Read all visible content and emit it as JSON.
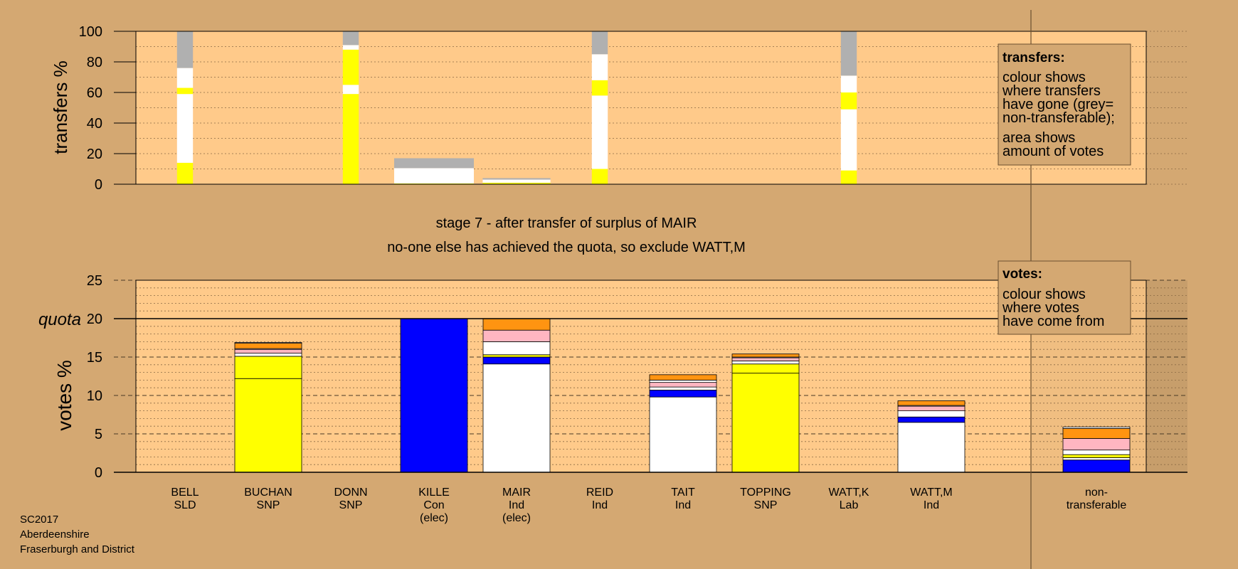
{
  "colors": {
    "background": "#d4a872",
    "plot_bg": "#ffca8a",
    "grey": "#b0b0b0",
    "yellow": "#ffff00",
    "white": "#ffffff",
    "blue": "#0000ff",
    "pink": "#ffb6c1",
    "orange": "#ff9411"
  },
  "stage_title": "stage 7 - after transfer of surplus of MAIR",
  "stage_subtitle": "no-one else has achieved the quota, so exclude WATT,M",
  "footer": [
    "SC2017",
    "Aberdeenshire",
    "Fraserburgh and District"
  ],
  "quota_label": "quota",
  "legend_transfers": {
    "title": "transfers:",
    "line1": "colour shows",
    "line2": "where transfers",
    "line3": "have gone (grey=",
    "line4": "non-transferable);",
    "line5": "area shows",
    "line6": "amount of votes"
  },
  "legend_votes": {
    "title": "votes:",
    "line1": "colour shows",
    "line2": "where votes",
    "line3": "have come from"
  },
  "chart_data": [
    {
      "type": "bar",
      "chart": "transfers",
      "ylabel": "transfers %",
      "ylim": [
        0,
        100
      ],
      "yticks": [
        0,
        20,
        40,
        60,
        80,
        100
      ],
      "categories": [
        "BELL",
        "BUCHAN",
        "DONN",
        "KILLE",
        "MAIR",
        "REID",
        "TAIT",
        "TOPPING",
        "WATT,K",
        "WATT,M"
      ],
      "bars": [
        {
          "candidate": "BELL",
          "width_share": 0.2,
          "segments": [
            [
              "yellow",
              14
            ],
            [
              "white",
              45
            ],
            [
              "yellow",
              4
            ],
            [
              "white",
              13
            ],
            [
              "grey",
              24
            ]
          ]
        },
        {
          "candidate": "DONN",
          "width_share": 0.2,
          "segments": [
            [
              "yellow",
              59
            ],
            [
              "white",
              6
            ],
            [
              "yellow",
              23
            ],
            [
              "white",
              3
            ],
            [
              "grey",
              9
            ]
          ]
        },
        {
          "candidate": "KILLE",
          "width_share": 1.0,
          "segments": [
            [
              "yellow",
              0.5
            ],
            [
              "white",
              10
            ],
            [
              "grey",
              6.5
            ]
          ]
        },
        {
          "candidate": "MAIR",
          "width_share": 0.85,
          "segments": [
            [
              "yellow",
              1
            ],
            [
              "white",
              2
            ],
            [
              "grey",
              1
            ]
          ]
        },
        {
          "candidate": "REID",
          "width_share": 0.2,
          "segments": [
            [
              "yellow",
              10
            ],
            [
              "white",
              48
            ],
            [
              "yellow",
              10
            ],
            [
              "white",
              17
            ],
            [
              "grey",
              15
            ]
          ]
        },
        {
          "candidate": "WATT,K",
          "width_share": 0.2,
          "segments": [
            [
              "yellow",
              9
            ],
            [
              "white",
              40
            ],
            [
              "yellow",
              11
            ],
            [
              "white",
              11
            ],
            [
              "grey",
              29
            ]
          ]
        }
      ]
    },
    {
      "type": "bar",
      "chart": "votes",
      "ylabel": "votes %",
      "ylim": [
        0,
        25
      ],
      "yticks": [
        0,
        5,
        10,
        15,
        20,
        25
      ],
      "quota": 20,
      "categories": [
        "BELL",
        "BUCHAN",
        "DONN",
        "KILLE",
        "MAIR",
        "REID",
        "TAIT",
        "TOPPING",
        "WATT,K",
        "WATT,M",
        "non-transferable"
      ],
      "tick_labels": [
        [
          "BELL",
          "SLD"
        ],
        [
          "BUCHAN",
          "SNP"
        ],
        [
          "DONN",
          "SNP"
        ],
        [
          "KILLE",
          "Con",
          "(elec)"
        ],
        [
          "MAIR",
          "Ind",
          "(elec)"
        ],
        [
          "REID",
          "Ind"
        ],
        [
          "TAIT",
          "Ind"
        ],
        [
          "TOPPING",
          "SNP"
        ],
        [
          "WATT,K",
          "Lab"
        ],
        [
          "WATT,M",
          "Ind"
        ],
        [
          "non-",
          "transferable"
        ]
      ],
      "bars": [
        {
          "candidate": "BUCHAN",
          "segments": [
            [
              "yellow",
              12.2
            ],
            [
              "yellow",
              2.9
            ],
            [
              "white",
              0.4
            ],
            [
              "pink",
              0.5
            ],
            [
              "white",
              0.1
            ],
            [
              "orange",
              0.7
            ],
            [
              "white",
              0.1
            ]
          ]
        },
        {
          "candidate": "KILLE",
          "segments": [
            [
              "blue",
              20
            ]
          ]
        },
        {
          "candidate": "MAIR",
          "segments": [
            [
              "white",
              14.1
            ],
            [
              "blue",
              0.9
            ],
            [
              "yellow",
              0.3
            ],
            [
              "white",
              1.7
            ],
            [
              "pink",
              1.5
            ],
            [
              "orange",
              1.5
            ]
          ]
        },
        {
          "candidate": "TAIT",
          "segments": [
            [
              "white",
              9.8
            ],
            [
              "blue",
              0.9
            ],
            [
              "white",
              0.4
            ],
            [
              "pink",
              0.6
            ],
            [
              "white",
              0.3
            ],
            [
              "orange",
              0.7
            ]
          ]
        },
        {
          "candidate": "TOPPING",
          "segments": [
            [
              "yellow",
              12.9
            ],
            [
              "yellow",
              1.2
            ],
            [
              "white",
              0.4
            ],
            [
              "pink",
              0.4
            ],
            [
              "white",
              0.1
            ],
            [
              "orange",
              0.4
            ]
          ]
        },
        {
          "candidate": "WATT,M",
          "segments": [
            [
              "white",
              6.5
            ],
            [
              "blue",
              0.7
            ],
            [
              "white",
              0.8
            ],
            [
              "pink",
              0.6
            ],
            [
              "white",
              0.1
            ],
            [
              "orange",
              0.6
            ]
          ]
        },
        {
          "candidate": "non-transferable",
          "segments": [
            [
              "blue",
              1.6
            ],
            [
              "white",
              0.3
            ],
            [
              "yellow",
              0.4
            ],
            [
              "white",
              0.6
            ],
            [
              "pink",
              1.5
            ],
            [
              "orange",
              1.3
            ],
            [
              "white",
              0.2
            ]
          ]
        }
      ]
    }
  ]
}
